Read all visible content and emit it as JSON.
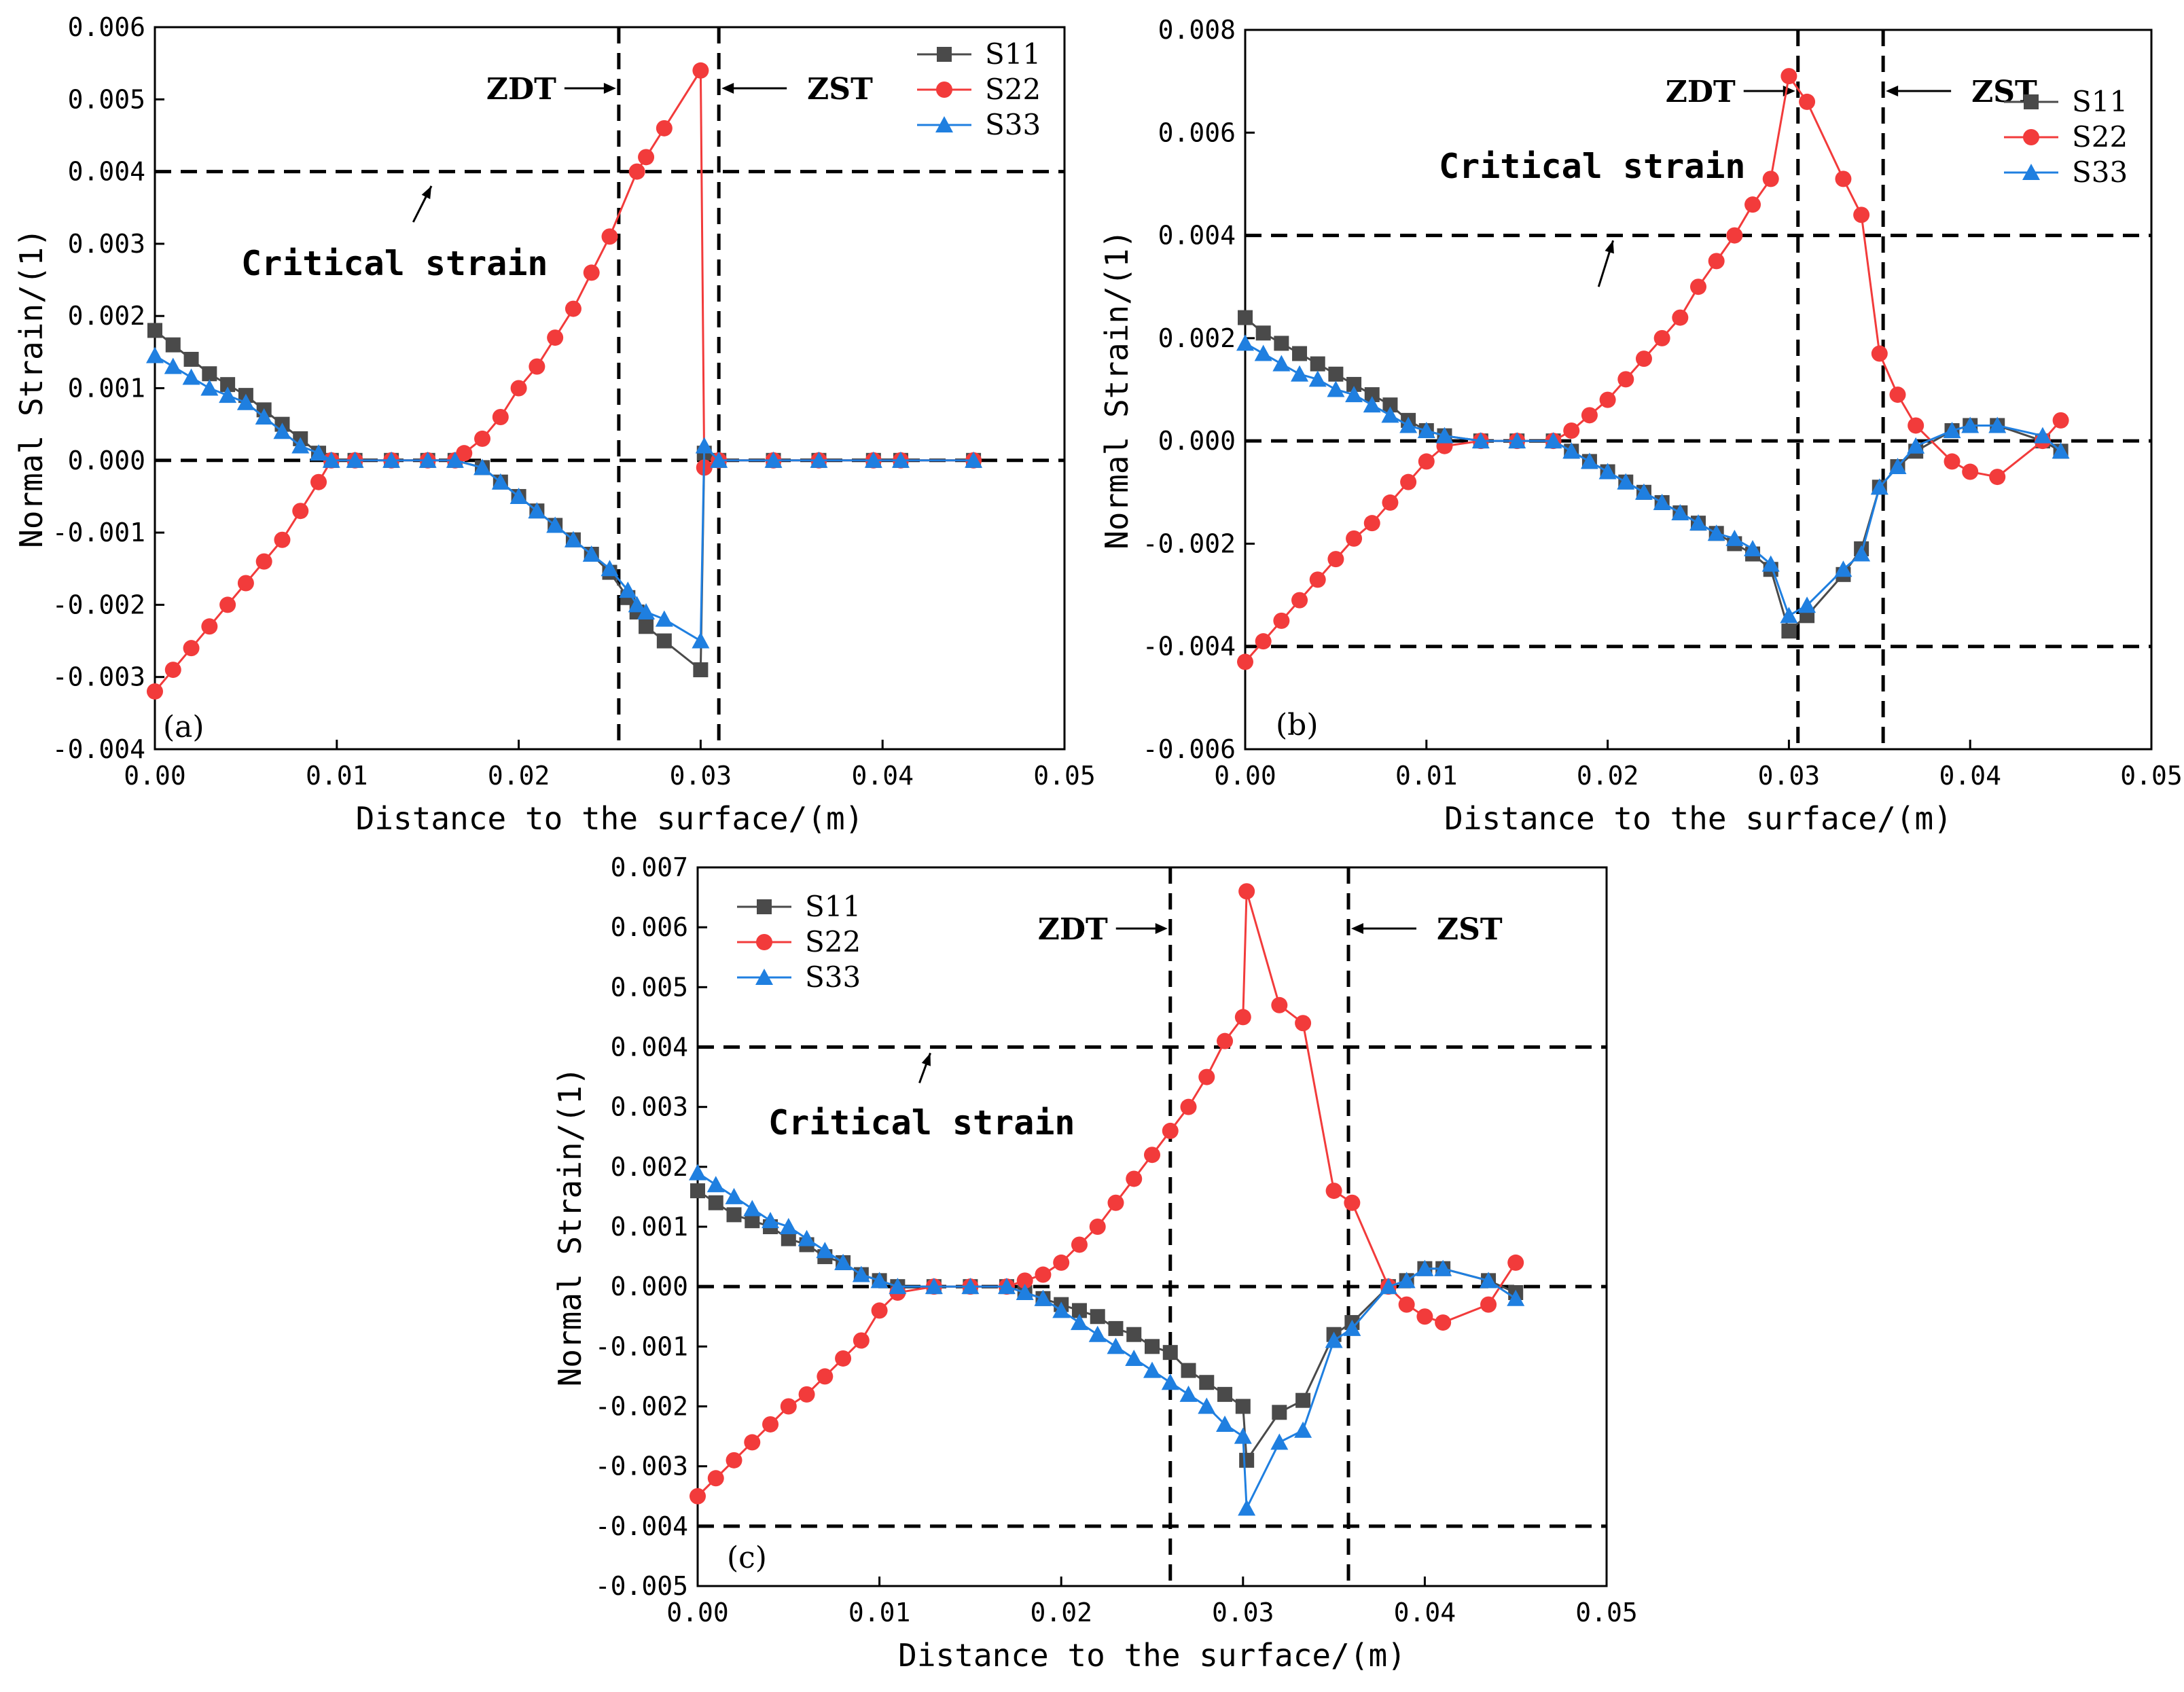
{
  "colors": {
    "S11": "#4a4a4a",
    "S22": "#f23b3b",
    "S33": "#1f7fe0"
  },
  "chart_data": [
    {
      "type": "line",
      "panel": "(a)",
      "xlabel": "Distance to the surface/(m)",
      "ylabel": "Normal Strain/(1)",
      "xlim": [
        0,
        0.05
      ],
      "ylim": [
        -0.004,
        0.006
      ],
      "xticks": [
        "0.00",
        "0.01",
        "0.02",
        "0.03",
        "0.04",
        "0.05"
      ],
      "yticks": [
        "-0.004",
        "-0.003",
        "-0.002",
        "-0.001",
        "0.000",
        "0.001",
        "0.002",
        "0.003",
        "0.004",
        "0.005",
        "0.006"
      ],
      "critical_label": "Critical strain",
      "critical_levels": [
        0.004,
        0.0
      ],
      "critical_arrow": {
        "from": [
          0.0142,
          0.0033
        ],
        "to": [
          0.0152,
          0.0038
        ]
      },
      "zones": [
        {
          "label": "ZDT",
          "x": 0.0255,
          "label_side": "left"
        },
        {
          "label": "ZST",
          "x": 0.031,
          "label_side": "right"
        }
      ],
      "legend": [
        "S11",
        "S22",
        "S33"
      ],
      "series": [
        {
          "name": "S11",
          "marker": "square",
          "x": [
            0,
            0.001,
            0.002,
            0.003,
            0.004,
            0.005,
            0.006,
            0.007,
            0.008,
            0.009,
            0.0097,
            0.011,
            0.013,
            0.015,
            0.0165,
            0.018,
            0.019,
            0.02,
            0.021,
            0.022,
            0.023,
            0.024,
            0.025,
            0.026,
            0.0265,
            0.027,
            0.028,
            0.03,
            0.0302,
            0.031,
            0.034,
            0.0365,
            0.0395,
            0.041,
            0.045
          ],
          "y": [
            0.0018,
            0.0016,
            0.0014,
            0.0012,
            0.00105,
            0.0009,
            0.0007,
            0.0005,
            0.0003,
            0.0001,
            0,
            0,
            0,
            0,
            0,
            -0.0001,
            -0.0003,
            -0.0005,
            -0.0007,
            -0.0009,
            -0.0011,
            -0.0013,
            -0.00155,
            -0.0019,
            -0.0021,
            -0.0023,
            -0.0025,
            -0.0029,
            0.0001,
            0,
            0,
            0,
            0,
            0,
            0
          ]
        },
        {
          "name": "S22",
          "marker": "circle",
          "x": [
            0,
            0.001,
            0.002,
            0.003,
            0.004,
            0.005,
            0.006,
            0.007,
            0.008,
            0.009,
            0.0097,
            0.011,
            0.013,
            0.015,
            0.0165,
            0.017,
            0.018,
            0.019,
            0.02,
            0.021,
            0.022,
            0.023,
            0.024,
            0.025,
            0.0265,
            0.027,
            0.028,
            0.03,
            0.0302,
            0.031,
            0.034,
            0.0365,
            0.0395,
            0.041,
            0.045
          ],
          "y": [
            -0.0032,
            -0.0029,
            -0.0026,
            -0.0023,
            -0.002,
            -0.0017,
            -0.0014,
            -0.0011,
            -0.0007,
            -0.0003,
            0,
            0,
            0,
            0,
            0,
            0.0001,
            0.0003,
            0.0006,
            0.001,
            0.0013,
            0.0017,
            0.0021,
            0.0026,
            0.0031,
            0.004,
            0.0042,
            0.0046,
            0.0054,
            -0.0001,
            0,
            0,
            0,
            0,
            0,
            0
          ]
        },
        {
          "name": "S33",
          "marker": "triangle",
          "x": [
            0,
            0.001,
            0.002,
            0.003,
            0.004,
            0.005,
            0.006,
            0.007,
            0.008,
            0.009,
            0.0097,
            0.011,
            0.013,
            0.015,
            0.0165,
            0.018,
            0.019,
            0.02,
            0.021,
            0.022,
            0.023,
            0.024,
            0.025,
            0.026,
            0.0265,
            0.027,
            0.028,
            0.03,
            0.0302,
            0.031,
            0.034,
            0.0365,
            0.0395,
            0.041,
            0.045
          ],
          "y": [
            0.00145,
            0.0013,
            0.00115,
            0.001,
            0.0009,
            0.0008,
            0.0006,
            0.0004,
            0.0002,
            0.0001,
            0,
            0,
            0,
            0,
            0,
            -0.0001,
            -0.0003,
            -0.0005,
            -0.0007,
            -0.0009,
            -0.0011,
            -0.0013,
            -0.0015,
            -0.0018,
            -0.002,
            -0.0021,
            -0.0022,
            -0.0025,
            0.0002,
            0,
            0,
            0,
            0,
            0,
            0
          ]
        }
      ]
    },
    {
      "type": "line",
      "panel": "(b)",
      "xlabel": "Distance to the surface/(m)",
      "ylabel": "Normal Strain/(1)",
      "xlim": [
        0,
        0.05
      ],
      "ylim": [
        -0.006,
        0.008
      ],
      "xticks": [
        "0.00",
        "0.01",
        "0.02",
        "0.03",
        "0.04",
        "0.05"
      ],
      "yticks": [
        "-0.006",
        "-0.004",
        "-0.002",
        "0.000",
        "0.002",
        "0.004",
        "0.006",
        "0.008"
      ],
      "critical_label": "Critical strain",
      "critical_levels": [
        0.004,
        0.0,
        -0.004
      ],
      "critical_arrow": {
        "from": [
          0.0195,
          0.003
        ],
        "to": [
          0.0203,
          0.0039
        ]
      },
      "zones": [
        {
          "label": "ZDT",
          "x": 0.0305,
          "label_side": "left"
        },
        {
          "label": "ZST",
          "x": 0.0352,
          "label_side": "right"
        }
      ],
      "legend": [
        "S11",
        "S22",
        "S33"
      ],
      "series": [
        {
          "name": "S11",
          "marker": "square",
          "x": [
            0,
            0.001,
            0.002,
            0.003,
            0.004,
            0.005,
            0.006,
            0.007,
            0.008,
            0.009,
            0.01,
            0.011,
            0.013,
            0.015,
            0.017,
            0.018,
            0.019,
            0.02,
            0.021,
            0.022,
            0.023,
            0.024,
            0.025,
            0.026,
            0.027,
            0.028,
            0.029,
            0.03,
            0.031,
            0.033,
            0.034,
            0.035,
            0.036,
            0.037,
            0.039,
            0.04,
            0.0415,
            0.044,
            0.045
          ],
          "y": [
            0.0024,
            0.0021,
            0.0019,
            0.0017,
            0.0015,
            0.0013,
            0.0011,
            0.0009,
            0.0007,
            0.0004,
            0.0002,
            0.0001,
            0,
            0,
            0,
            -0.0002,
            -0.0004,
            -0.0006,
            -0.0008,
            -0.001,
            -0.0012,
            -0.0014,
            -0.0016,
            -0.0018,
            -0.002,
            -0.0022,
            -0.0025,
            -0.0037,
            -0.0034,
            -0.0026,
            -0.0021,
            -0.0009,
            -0.0005,
            -0.0002,
            0.0002,
            0.0003,
            0.0003,
            0,
            -0.0002
          ]
        },
        {
          "name": "S22",
          "marker": "circle",
          "x": [
            0,
            0.001,
            0.002,
            0.003,
            0.004,
            0.005,
            0.006,
            0.007,
            0.008,
            0.009,
            0.01,
            0.011,
            0.013,
            0.015,
            0.017,
            0.018,
            0.019,
            0.02,
            0.021,
            0.022,
            0.023,
            0.024,
            0.025,
            0.026,
            0.027,
            0.028,
            0.029,
            0.03,
            0.031,
            0.033,
            0.034,
            0.035,
            0.036,
            0.037,
            0.039,
            0.04,
            0.0415,
            0.044,
            0.045
          ],
          "y": [
            -0.0043,
            -0.0039,
            -0.0035,
            -0.0031,
            -0.0027,
            -0.0023,
            -0.0019,
            -0.0016,
            -0.0012,
            -0.0008,
            -0.0004,
            -0.0001,
            0,
            0,
            0,
            0.0002,
            0.0005,
            0.0008,
            0.0012,
            0.0016,
            0.002,
            0.0024,
            0.003,
            0.0035,
            0.004,
            0.0046,
            0.0051,
            0.0071,
            0.0066,
            0.0051,
            0.0044,
            0.0017,
            0.0009,
            0.0003,
            -0.0004,
            -0.0006,
            -0.0007,
            0,
            0.0004
          ]
        },
        {
          "name": "S33",
          "marker": "triangle",
          "x": [
            0,
            0.001,
            0.002,
            0.003,
            0.004,
            0.005,
            0.006,
            0.007,
            0.008,
            0.009,
            0.01,
            0.011,
            0.013,
            0.015,
            0.017,
            0.018,
            0.019,
            0.02,
            0.021,
            0.022,
            0.023,
            0.024,
            0.025,
            0.026,
            0.027,
            0.028,
            0.029,
            0.03,
            0.031,
            0.033,
            0.034,
            0.035,
            0.036,
            0.037,
            0.039,
            0.04,
            0.0415,
            0.044,
            0.045
          ],
          "y": [
            0.0019,
            0.0017,
            0.0015,
            0.0013,
            0.0012,
            0.001,
            0.0009,
            0.0007,
            0.0005,
            0.0003,
            0.0002,
            0.0001,
            0,
            0,
            0,
            -0.0002,
            -0.0004,
            -0.0006,
            -0.0008,
            -0.001,
            -0.0012,
            -0.0014,
            -0.0016,
            -0.0018,
            -0.0019,
            -0.0021,
            -0.0024,
            -0.0034,
            -0.0032,
            -0.0025,
            -0.0022,
            -0.0009,
            -0.0005,
            -0.0001,
            0.0002,
            0.0003,
            0.0003,
            0.0001,
            -0.0002
          ]
        }
      ]
    },
    {
      "type": "line",
      "panel": "(c)",
      "xlabel": "Distance to the surface/(m)",
      "ylabel": "Normal Strain/(1)",
      "xlim": [
        0,
        0.05
      ],
      "ylim": [
        -0.005,
        0.007
      ],
      "xticks": [
        "0.00",
        "0.01",
        "0.02",
        "0.03",
        "0.04",
        "0.05"
      ],
      "yticks": [
        "-0.005",
        "-0.004",
        "-0.003",
        "-0.002",
        "-0.001",
        "0.000",
        "0.001",
        "0.002",
        "0.003",
        "0.004",
        "0.005",
        "0.006",
        "0.007"
      ],
      "critical_label": "Critical strain",
      "critical_levels": [
        0.004,
        0.0,
        -0.004
      ],
      "critical_arrow": {
        "from": [
          0.0122,
          0.0034
        ],
        "to": [
          0.0128,
          0.0039
        ]
      },
      "zones": [
        {
          "label": "ZDT",
          "x": 0.026,
          "label_side": "left"
        },
        {
          "label": "ZST",
          "x": 0.0358,
          "label_side": "right"
        }
      ],
      "legend": [
        "S11",
        "S22",
        "S33"
      ],
      "series": [
        {
          "name": "S11",
          "marker": "square",
          "x": [
            0,
            0.001,
            0.002,
            0.003,
            0.004,
            0.005,
            0.006,
            0.007,
            0.008,
            0.009,
            0.01,
            0.011,
            0.013,
            0.015,
            0.017,
            0.018,
            0.019,
            0.02,
            0.021,
            0.022,
            0.023,
            0.024,
            0.025,
            0.026,
            0.027,
            0.028,
            0.029,
            0.03,
            0.0302,
            0.032,
            0.0333,
            0.035,
            0.036,
            0.038,
            0.039,
            0.04,
            0.041,
            0.0435,
            0.045
          ],
          "y": [
            0.0016,
            0.0014,
            0.0012,
            0.0011,
            0.001,
            0.0008,
            0.0007,
            0.0005,
            0.0004,
            0.0002,
            0.0001,
            0,
            0,
            0,
            0,
            -0.0001,
            -0.0002,
            -0.0003,
            -0.0004,
            -0.0005,
            -0.0007,
            -0.0008,
            -0.001,
            -0.0011,
            -0.0014,
            -0.0016,
            -0.0018,
            -0.002,
            -0.0029,
            -0.0021,
            -0.0019,
            -0.0008,
            -0.0006,
            0,
            0.0001,
            0.0003,
            0.0003,
            0.0001,
            -0.0001
          ]
        },
        {
          "name": "S22",
          "marker": "circle",
          "x": [
            0,
            0.001,
            0.002,
            0.003,
            0.004,
            0.005,
            0.006,
            0.007,
            0.008,
            0.009,
            0.01,
            0.011,
            0.013,
            0.015,
            0.017,
            0.018,
            0.019,
            0.02,
            0.021,
            0.022,
            0.023,
            0.024,
            0.025,
            0.026,
            0.027,
            0.028,
            0.029,
            0.03,
            0.0302,
            0.032,
            0.0333,
            0.035,
            0.036,
            0.038,
            0.039,
            0.04,
            0.041,
            0.0435,
            0.045
          ],
          "y": [
            -0.0035,
            -0.0032,
            -0.0029,
            -0.0026,
            -0.0023,
            -0.002,
            -0.0018,
            -0.0015,
            -0.0012,
            -0.0009,
            -0.0004,
            -0.0001,
            0,
            0,
            0,
            0.0001,
            0.0002,
            0.0004,
            0.0007,
            0.001,
            0.0014,
            0.0018,
            0.0022,
            0.0026,
            0.003,
            0.0035,
            0.0041,
            0.0045,
            0.0066,
            0.0047,
            0.0044,
            0.0016,
            0.0014,
            0,
            -0.0003,
            -0.0005,
            -0.0006,
            -0.0003,
            0.0004
          ]
        },
        {
          "name": "S33",
          "marker": "triangle",
          "x": [
            0,
            0.001,
            0.002,
            0.003,
            0.004,
            0.005,
            0.006,
            0.007,
            0.008,
            0.009,
            0.01,
            0.011,
            0.013,
            0.015,
            0.017,
            0.018,
            0.019,
            0.02,
            0.021,
            0.022,
            0.023,
            0.024,
            0.025,
            0.026,
            0.027,
            0.028,
            0.029,
            0.03,
            0.0302,
            0.032,
            0.0333,
            0.035,
            0.036,
            0.038,
            0.039,
            0.04,
            0.041,
            0.0435,
            0.045
          ],
          "y": [
            0.0019,
            0.0017,
            0.0015,
            0.0013,
            0.0011,
            0.001,
            0.0008,
            0.0006,
            0.0004,
            0.0002,
            0.0001,
            0,
            0,
            0,
            0,
            -0.0001,
            -0.0002,
            -0.0004,
            -0.0006,
            -0.0008,
            -0.001,
            -0.0012,
            -0.0014,
            -0.0016,
            -0.0018,
            -0.002,
            -0.0023,
            -0.0025,
            -0.0037,
            -0.0026,
            -0.0024,
            -0.0009,
            -0.0007,
            0,
            0.0001,
            0.0003,
            0.0003,
            0.0001,
            -0.0002
          ]
        }
      ]
    }
  ]
}
